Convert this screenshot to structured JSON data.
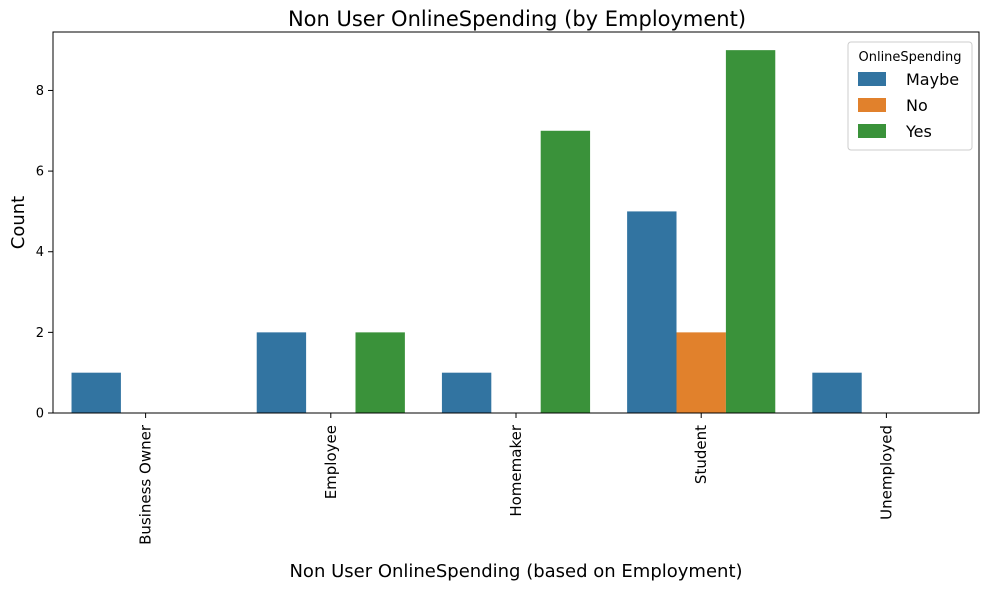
{
  "chart_data": {
    "type": "bar",
    "title": "Non User OnlineSpending (by Employment)",
    "xlabel": "Non User OnlineSpending (based on Employment)",
    "ylabel": "Count",
    "categories": [
      "Business Owner",
      "Employee",
      "Homemaker",
      "Student",
      "Unemployed"
    ],
    "ylim": [
      0,
      9.45
    ],
    "yticks": [
      0,
      2,
      4,
      6,
      8
    ],
    "legend_title": "OnlineSpending",
    "legend_position": "top-right",
    "series": [
      {
        "name": "Maybe",
        "color": "#3274a1",
        "values": [
          1,
          2,
          1,
          5,
          1
        ]
      },
      {
        "name": "No",
        "color": "#e1812c",
        "values": [
          0,
          0,
          0,
          2,
          0
        ]
      },
      {
        "name": "Yes",
        "color": "#3a923a",
        "values": [
          0,
          2,
          7,
          9,
          0
        ]
      }
    ]
  }
}
